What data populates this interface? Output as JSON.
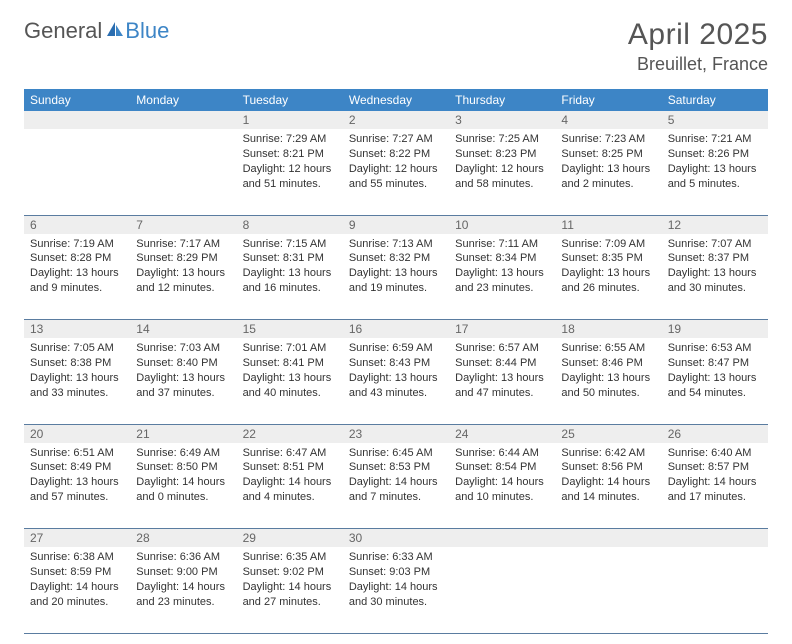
{
  "brand": {
    "part1": "General",
    "part2": "Blue"
  },
  "title": "April 2025",
  "subtitle": "Breuillet, France",
  "colors": {
    "header_bg": "#3d85c6",
    "header_text": "#ffffff",
    "daynum_bg": "#eeeeee",
    "daynum_text": "#666666",
    "cell_text": "#333333",
    "title_text": "#555555",
    "row_border": "#5a7ca0"
  },
  "fonts": {
    "title_size": 30,
    "subtitle_size": 18,
    "header_size": 12,
    "daynum_size": 12,
    "cell_size": 11
  },
  "dayHeaders": [
    "Sunday",
    "Monday",
    "Tuesday",
    "Wednesday",
    "Thursday",
    "Friday",
    "Saturday"
  ],
  "weeks": [
    [
      {
        "n": "",
        "sunrise": "",
        "sunset": "",
        "daylight": ""
      },
      {
        "n": "",
        "sunrise": "",
        "sunset": "",
        "daylight": ""
      },
      {
        "n": "1",
        "sunrise": "Sunrise: 7:29 AM",
        "sunset": "Sunset: 8:21 PM",
        "daylight": "Daylight: 12 hours and 51 minutes."
      },
      {
        "n": "2",
        "sunrise": "Sunrise: 7:27 AM",
        "sunset": "Sunset: 8:22 PM",
        "daylight": "Daylight: 12 hours and 55 minutes."
      },
      {
        "n": "3",
        "sunrise": "Sunrise: 7:25 AM",
        "sunset": "Sunset: 8:23 PM",
        "daylight": "Daylight: 12 hours and 58 minutes."
      },
      {
        "n": "4",
        "sunrise": "Sunrise: 7:23 AM",
        "sunset": "Sunset: 8:25 PM",
        "daylight": "Daylight: 13 hours and 2 minutes."
      },
      {
        "n": "5",
        "sunrise": "Sunrise: 7:21 AM",
        "sunset": "Sunset: 8:26 PM",
        "daylight": "Daylight: 13 hours and 5 minutes."
      }
    ],
    [
      {
        "n": "6",
        "sunrise": "Sunrise: 7:19 AM",
        "sunset": "Sunset: 8:28 PM",
        "daylight": "Daylight: 13 hours and 9 minutes."
      },
      {
        "n": "7",
        "sunrise": "Sunrise: 7:17 AM",
        "sunset": "Sunset: 8:29 PM",
        "daylight": "Daylight: 13 hours and 12 minutes."
      },
      {
        "n": "8",
        "sunrise": "Sunrise: 7:15 AM",
        "sunset": "Sunset: 8:31 PM",
        "daylight": "Daylight: 13 hours and 16 minutes."
      },
      {
        "n": "9",
        "sunrise": "Sunrise: 7:13 AM",
        "sunset": "Sunset: 8:32 PM",
        "daylight": "Daylight: 13 hours and 19 minutes."
      },
      {
        "n": "10",
        "sunrise": "Sunrise: 7:11 AM",
        "sunset": "Sunset: 8:34 PM",
        "daylight": "Daylight: 13 hours and 23 minutes."
      },
      {
        "n": "11",
        "sunrise": "Sunrise: 7:09 AM",
        "sunset": "Sunset: 8:35 PM",
        "daylight": "Daylight: 13 hours and 26 minutes."
      },
      {
        "n": "12",
        "sunrise": "Sunrise: 7:07 AM",
        "sunset": "Sunset: 8:37 PM",
        "daylight": "Daylight: 13 hours and 30 minutes."
      }
    ],
    [
      {
        "n": "13",
        "sunrise": "Sunrise: 7:05 AM",
        "sunset": "Sunset: 8:38 PM",
        "daylight": "Daylight: 13 hours and 33 minutes."
      },
      {
        "n": "14",
        "sunrise": "Sunrise: 7:03 AM",
        "sunset": "Sunset: 8:40 PM",
        "daylight": "Daylight: 13 hours and 37 minutes."
      },
      {
        "n": "15",
        "sunrise": "Sunrise: 7:01 AM",
        "sunset": "Sunset: 8:41 PM",
        "daylight": "Daylight: 13 hours and 40 minutes."
      },
      {
        "n": "16",
        "sunrise": "Sunrise: 6:59 AM",
        "sunset": "Sunset: 8:43 PM",
        "daylight": "Daylight: 13 hours and 43 minutes."
      },
      {
        "n": "17",
        "sunrise": "Sunrise: 6:57 AM",
        "sunset": "Sunset: 8:44 PM",
        "daylight": "Daylight: 13 hours and 47 minutes."
      },
      {
        "n": "18",
        "sunrise": "Sunrise: 6:55 AM",
        "sunset": "Sunset: 8:46 PM",
        "daylight": "Daylight: 13 hours and 50 minutes."
      },
      {
        "n": "19",
        "sunrise": "Sunrise: 6:53 AM",
        "sunset": "Sunset: 8:47 PM",
        "daylight": "Daylight: 13 hours and 54 minutes."
      }
    ],
    [
      {
        "n": "20",
        "sunrise": "Sunrise: 6:51 AM",
        "sunset": "Sunset: 8:49 PM",
        "daylight": "Daylight: 13 hours and 57 minutes."
      },
      {
        "n": "21",
        "sunrise": "Sunrise: 6:49 AM",
        "sunset": "Sunset: 8:50 PM",
        "daylight": "Daylight: 14 hours and 0 minutes."
      },
      {
        "n": "22",
        "sunrise": "Sunrise: 6:47 AM",
        "sunset": "Sunset: 8:51 PM",
        "daylight": "Daylight: 14 hours and 4 minutes."
      },
      {
        "n": "23",
        "sunrise": "Sunrise: 6:45 AM",
        "sunset": "Sunset: 8:53 PM",
        "daylight": "Daylight: 14 hours and 7 minutes."
      },
      {
        "n": "24",
        "sunrise": "Sunrise: 6:44 AM",
        "sunset": "Sunset: 8:54 PM",
        "daylight": "Daylight: 14 hours and 10 minutes."
      },
      {
        "n": "25",
        "sunrise": "Sunrise: 6:42 AM",
        "sunset": "Sunset: 8:56 PM",
        "daylight": "Daylight: 14 hours and 14 minutes."
      },
      {
        "n": "26",
        "sunrise": "Sunrise: 6:40 AM",
        "sunset": "Sunset: 8:57 PM",
        "daylight": "Daylight: 14 hours and 17 minutes."
      }
    ],
    [
      {
        "n": "27",
        "sunrise": "Sunrise: 6:38 AM",
        "sunset": "Sunset: 8:59 PM",
        "daylight": "Daylight: 14 hours and 20 minutes."
      },
      {
        "n": "28",
        "sunrise": "Sunrise: 6:36 AM",
        "sunset": "Sunset: 9:00 PM",
        "daylight": "Daylight: 14 hours and 23 minutes."
      },
      {
        "n": "29",
        "sunrise": "Sunrise: 6:35 AM",
        "sunset": "Sunset: 9:02 PM",
        "daylight": "Daylight: 14 hours and 27 minutes."
      },
      {
        "n": "30",
        "sunrise": "Sunrise: 6:33 AM",
        "sunset": "Sunset: 9:03 PM",
        "daylight": "Daylight: 14 hours and 30 minutes."
      },
      {
        "n": "",
        "sunrise": "",
        "sunset": "",
        "daylight": ""
      },
      {
        "n": "",
        "sunrise": "",
        "sunset": "",
        "daylight": ""
      },
      {
        "n": "",
        "sunrise": "",
        "sunset": "",
        "daylight": ""
      }
    ]
  ]
}
